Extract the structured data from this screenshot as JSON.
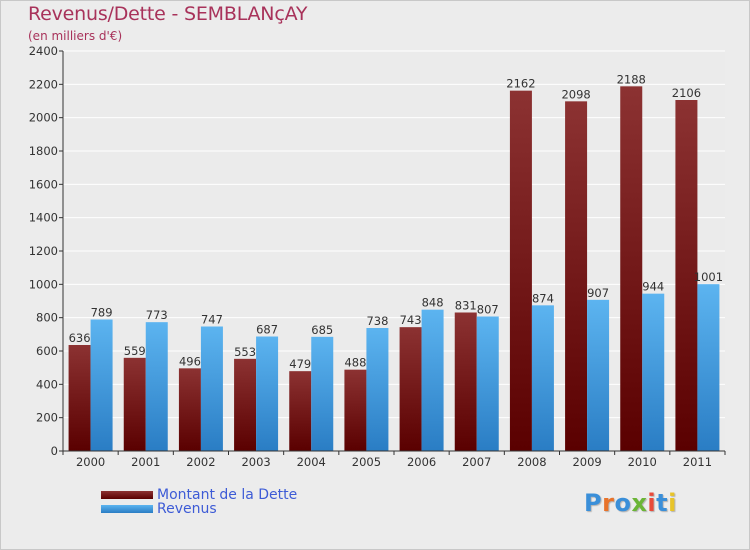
{
  "title": "Revenus/Dette - SEMBLANçAY",
  "subtitle": "(en milliers d'€)",
  "logo": {
    "text": "Proxiti",
    "colors": [
      "#3a8fd9",
      "#e8732a",
      "#3a8fd9",
      "#6bb536",
      "#e84a3a",
      "#3a8fd9",
      "#e8c42a"
    ]
  },
  "chart_data": {
    "type": "bar",
    "title": "Revenus/Dette - SEMBLANçAY",
    "subtitle": "(en milliers d'€)",
    "xlabel": "",
    "ylabel": "",
    "ylim": [
      0,
      2400
    ],
    "yticks": [
      0,
      200,
      400,
      600,
      800,
      1000,
      1200,
      1400,
      1600,
      1800,
      2000,
      2200,
      2400
    ],
    "grid": true,
    "legend_position": "bottom-left",
    "categories": [
      "2000",
      "2001",
      "2002",
      "2003",
      "2004",
      "2005",
      "2006",
      "2007",
      "2008",
      "2009",
      "2010",
      "2011"
    ],
    "series": [
      {
        "name": "Montant de la Dette",
        "color": "#7a1c1c",
        "values": [
          636,
          559,
          496,
          553,
          479,
          488,
          743,
          831,
          2162,
          2098,
          2188,
          2106
        ]
      },
      {
        "name": "Revenus",
        "color": "#4aa3e6",
        "values": [
          789,
          773,
          747,
          687,
          685,
          738,
          848,
          807,
          874,
          907,
          944,
          1001
        ]
      }
    ]
  }
}
